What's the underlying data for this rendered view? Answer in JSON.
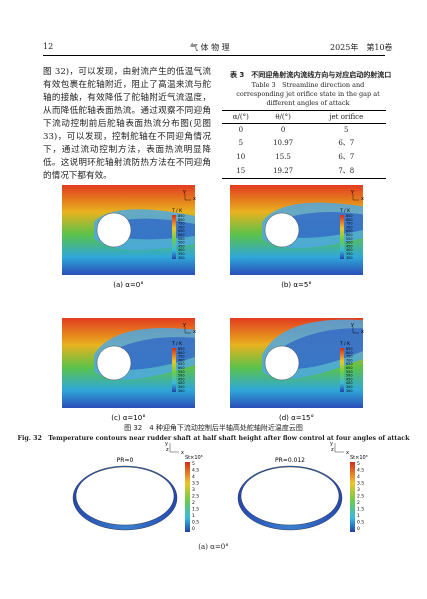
{
  "header": {
    "page": "12",
    "journal": "气 体 物 理",
    "issue": "2025年　第10卷"
  },
  "body": {
    "paragraph": "图 32)，可以发现，由射流产生的低温气流有效包裹在舵轴附近，阻止了高温来流与舵轴的接触，有效降低了舵轴附近气流温度，从而降低舵轴表面热流。通过观察不同迎角下流动控制前后舵轴表面热流分布图(见图 33)，可以发现，控制舵轴在不同迎角情况下，通过流动控制方法，表面热流明显降低。这说明环舵轴射流防热方法在不同迎角的情况下都有效。"
  },
  "table": {
    "title_cn": "表 3　不同迎角射流内流线方向与对应启动的射流口",
    "title_en": "Table 3　Streamline direction and corresponding jet orifice state in the gap at different angles of attack",
    "columns": [
      "α/(°)",
      "θ/(°)",
      "jet orifice"
    ],
    "rows": [
      [
        "0",
        "0",
        "5"
      ],
      [
        "5",
        "10.97",
        "6、7"
      ],
      [
        "10",
        "15.5",
        "6、7"
      ],
      [
        "15",
        "19.27",
        "7、8"
      ]
    ]
  },
  "figure32": {
    "panels": [
      "(a) α=0°",
      "(b) α=5°",
      "(c) α=10°",
      "(d) α=15°"
    ],
    "legend_title": "T / K",
    "legend_values": [
      850,
      800,
      750,
      700,
      650,
      600,
      550,
      500,
      450,
      400,
      350,
      300
    ],
    "axis_labels": [
      "y",
      "x"
    ],
    "caption_cn": "图 32　4 种迎角下流动控制后半轴高处舵轴附近温度云图",
    "caption_en": "Fig. 32　Temperature contours near rudder shaft at half shaft height after flow control at four angles of attack"
  },
  "figure33": {
    "panels": [
      "PR=0",
      "PR=0.012"
    ],
    "legend_title": "St×10³",
    "legend_values": [
      5,
      4.5,
      4,
      3.5,
      3,
      2.5,
      2,
      1.5,
      1,
      0.5,
      0
    ],
    "axis_labels": [
      "y",
      "z",
      "x"
    ],
    "caption": "(a) α=0°"
  }
}
